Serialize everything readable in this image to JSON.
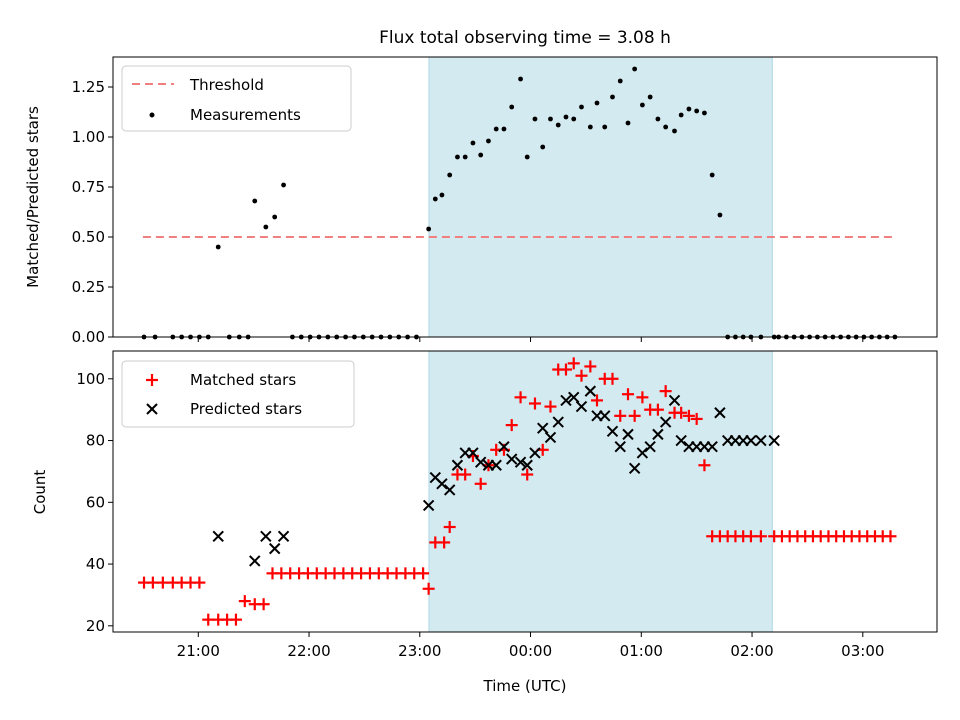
{
  "chart_data": [
    {
      "type": "scatter",
      "title": "Flux total observing time = 3.08 h",
      "xlabel": "",
      "ylabel": "Matched/Predicted stars",
      "ylim": [
        0,
        1.4
      ],
      "yticks": [
        0.0,
        0.25,
        0.5,
        0.75,
        1.0,
        1.25
      ],
      "ytick_labels": [
        "0.00",
        "0.25",
        "0.50",
        "0.75",
        "1.00",
        "1.25"
      ],
      "xlim_hours": [
        20.23,
        27.67
      ],
      "shaded_interval_hours": [
        23.083,
        26.183
      ],
      "shade_color": "#d4eaf1",
      "legend_position": "upper left",
      "legend": [
        "Threshold",
        "Measurements"
      ],
      "series": [
        {
          "name": "Threshold",
          "style": "dashed-line",
          "color": "#f08080",
          "x_hours": [
            20.5,
            27.3
          ],
          "values": [
            0.5,
            0.5
          ]
        },
        {
          "name": "Measurements",
          "style": "point",
          "color": "#000000",
          "x_hours": [
            20.51,
            20.61,
            20.77,
            20.85,
            20.93,
            21.01,
            21.09,
            21.18,
            21.28,
            21.37,
            21.45,
            21.51,
            21.61,
            21.69,
            21.77,
            21.85,
            21.93,
            22.01,
            22.09,
            22.17,
            22.25,
            22.33,
            22.41,
            22.49,
            22.57,
            22.65,
            22.73,
            22.81,
            22.89,
            22.97,
            23.08,
            23.14,
            23.2,
            23.27,
            23.34,
            23.41,
            23.48,
            23.55,
            23.62,
            23.69,
            23.76,
            23.83,
            23.91,
            23.97,
            24.04,
            24.11,
            24.18,
            24.25,
            24.32,
            24.39,
            24.46,
            24.54,
            24.6,
            24.67,
            24.74,
            24.81,
            24.88,
            24.94,
            25.01,
            25.08,
            25.15,
            25.22,
            25.3,
            25.36,
            25.43,
            25.5,
            25.57,
            25.64,
            25.71,
            25.78,
            25.85,
            25.92,
            25.99,
            26.08,
            26.2,
            26.24,
            26.31,
            26.38,
            26.45,
            26.52,
            26.59,
            26.66,
            26.73,
            26.8,
            26.87,
            26.94,
            27.01,
            27.08,
            27.15,
            27.22,
            27.29
          ],
          "values": [
            0,
            0,
            0,
            0,
            0,
            0,
            0,
            0.45,
            0,
            0,
            0,
            0.68,
            0.55,
            0.6,
            0.76,
            0,
            0,
            0,
            0,
            0,
            0,
            0,
            0,
            0,
            0,
            0,
            0,
            0,
            0,
            0,
            0.54,
            0.69,
            0.71,
            0.81,
            0.9,
            0.9,
            0.97,
            0.91,
            0.98,
            1.04,
            1.04,
            1.15,
            1.29,
            0.9,
            1.09,
            0.95,
            1.09,
            1.06,
            1.1,
            1.09,
            1.15,
            1.05,
            1.17,
            1.05,
            1.2,
            1.28,
            1.07,
            1.34,
            1.16,
            1.2,
            1.09,
            1.05,
            1.03,
            1.11,
            1.14,
            1.13,
            1.12,
            0.81,
            0.61,
            0,
            0,
            0,
            0,
            0,
            0,
            0,
            0,
            0,
            0,
            0,
            0,
            0,
            0,
            0,
            0,
            0,
            0,
            0,
            0,
            0,
            0
          ]
        }
      ]
    },
    {
      "type": "scatter",
      "title": "",
      "xlabel": "Time (UTC)",
      "ylabel": "Count",
      "ylim": [
        18,
        109
      ],
      "yticks": [
        20,
        40,
        60,
        80,
        100
      ],
      "ytick_labels": [
        "20",
        "40",
        "60",
        "80",
        "100"
      ],
      "xlim_hours": [
        20.23,
        27.67
      ],
      "xticks_hours": [
        21,
        22,
        23,
        24,
        25,
        26,
        27
      ],
      "xtick_labels": [
        "21:00",
        "22:00",
        "23:00",
        "00:00",
        "01:00",
        "02:00",
        "03:00"
      ],
      "shaded_interval_hours": [
        23.083,
        26.183
      ],
      "shade_color": "#d4eaf1",
      "legend_position": "upper left",
      "legend": [
        "Matched stars",
        "Predicted stars"
      ],
      "series": [
        {
          "name": "Matched stars",
          "marker": "plus",
          "color": "#ff0000",
          "x_hours": [
            20.51,
            20.59,
            20.68,
            20.77,
            20.85,
            20.93,
            21.01,
            21.09,
            21.18,
            21.26,
            21.34,
            21.42,
            21.51,
            21.59,
            21.67,
            21.75,
            21.83,
            21.91,
            21.99,
            22.07,
            22.15,
            22.23,
            22.31,
            22.39,
            22.47,
            22.55,
            22.63,
            22.71,
            22.79,
            22.87,
            22.95,
            23.03,
            23.08,
            23.14,
            23.22,
            23.27,
            23.34,
            23.41,
            23.48,
            23.55,
            23.62,
            23.69,
            23.76,
            23.83,
            23.91,
            23.97,
            24.04,
            24.11,
            24.18,
            24.25,
            24.32,
            24.39,
            24.46,
            24.54,
            24.6,
            24.67,
            24.74,
            24.81,
            24.88,
            24.94,
            25.01,
            25.08,
            25.15,
            25.22,
            25.3,
            25.36,
            25.43,
            25.5,
            25.57,
            25.64,
            25.71,
            25.78,
            25.85,
            25.92,
            25.99,
            26.08,
            26.2,
            26.27,
            26.34,
            26.41,
            26.48,
            26.55,
            26.62,
            26.69,
            26.76,
            26.83,
            26.9,
            26.97,
            27.04,
            27.11,
            27.18,
            27.25
          ],
          "values": [
            34,
            34,
            34,
            34,
            34,
            34,
            34,
            22,
            22,
            22,
            22,
            28,
            27,
            27,
            37,
            37,
            37,
            37,
            37,
            37,
            37,
            37,
            37,
            37,
            37,
            37,
            37,
            37,
            37,
            37,
            37,
            37,
            32,
            47,
            47,
            52,
            69,
            69,
            75,
            66,
            72,
            77,
            77,
            85,
            94,
            69,
            92,
            77,
            91,
            103,
            103,
            105,
            101,
            104,
            93,
            100,
            100,
            88,
            95,
            88,
            94,
            90,
            90,
            96,
            89,
            89,
            88,
            87,
            72,
            49,
            49,
            49,
            49,
            49,
            49,
            49,
            49,
            49,
            49,
            49,
            49,
            49,
            49,
            49,
            49,
            49,
            49,
            49,
            49,
            49,
            49,
            49
          ]
        },
        {
          "name": "Predicted stars",
          "marker": "x",
          "color": "#000000",
          "x_hours": [
            21.18,
            21.51,
            21.61,
            21.69,
            21.77,
            23.08,
            23.14,
            23.2,
            23.27,
            23.34,
            23.41,
            23.48,
            23.55,
            23.62,
            23.69,
            23.76,
            23.83,
            23.91,
            23.97,
            24.04,
            24.11,
            24.18,
            24.25,
            24.32,
            24.39,
            24.46,
            24.54,
            24.6,
            24.67,
            24.74,
            24.81,
            24.88,
            24.94,
            25.01,
            25.08,
            25.15,
            25.22,
            25.3,
            25.36,
            25.43,
            25.5,
            25.57,
            25.64,
            25.71,
            25.78,
            25.85,
            25.92,
            25.99,
            26.08,
            26.2
          ],
          "values": [
            49,
            41,
            49,
            45,
            49,
            59,
            68,
            66,
            64,
            72,
            76,
            76,
            73,
            72,
            72,
            78,
            74,
            73,
            72,
            76,
            84,
            81,
            86,
            93,
            94,
            91,
            96,
            88,
            88,
            83,
            78,
            82,
            71,
            76,
            78,
            82,
            86,
            93,
            80,
            78,
            78,
            78,
            78,
            89,
            80,
            80,
            80,
            80,
            80,
            80
          ]
        }
      ]
    }
  ]
}
